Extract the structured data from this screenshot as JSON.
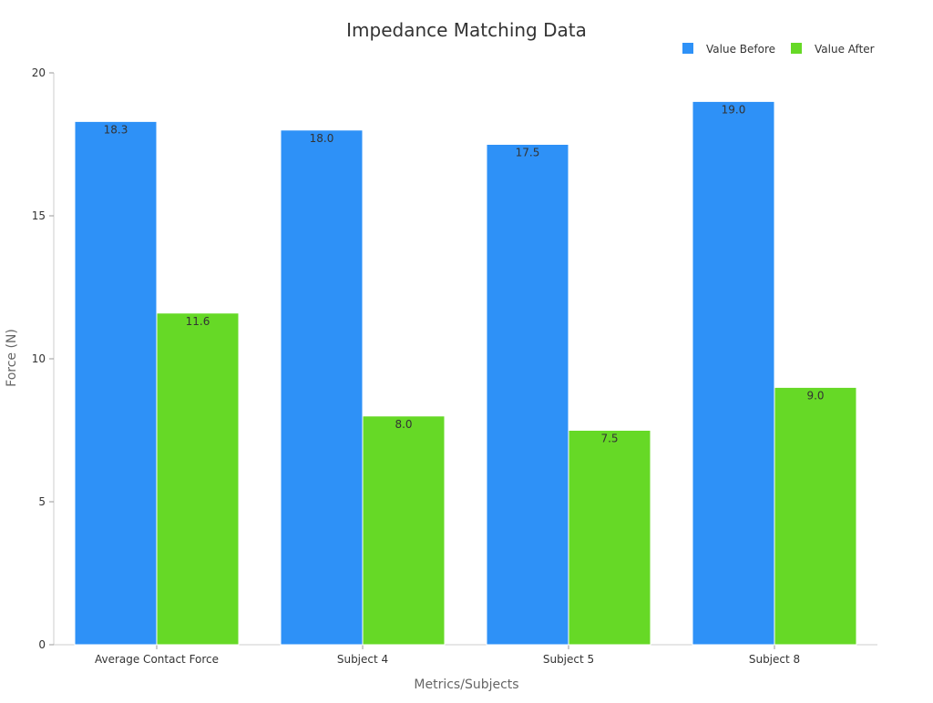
{
  "chart_data": {
    "type": "bar",
    "title": "Impedance Matching Data",
    "xlabel": "Metrics/Subjects",
    "ylabel": "Force (N)",
    "categories": [
      "Average Contact Force",
      "Subject 4",
      "Subject 5",
      "Subject 8"
    ],
    "series": [
      {
        "name": "Value Before",
        "values": [
          18.3,
          18.0,
          17.5,
          19.0
        ],
        "color": "#2e91f7"
      },
      {
        "name": "Value After",
        "values": [
          11.6,
          8.0,
          7.5,
          9.0
        ],
        "color": "#66d926"
      }
    ],
    "ylim": [
      0,
      20
    ],
    "yticks": [
      0,
      5,
      10,
      15,
      20
    ],
    "legend": "top-right",
    "grid": false,
    "data_labels": true
  }
}
